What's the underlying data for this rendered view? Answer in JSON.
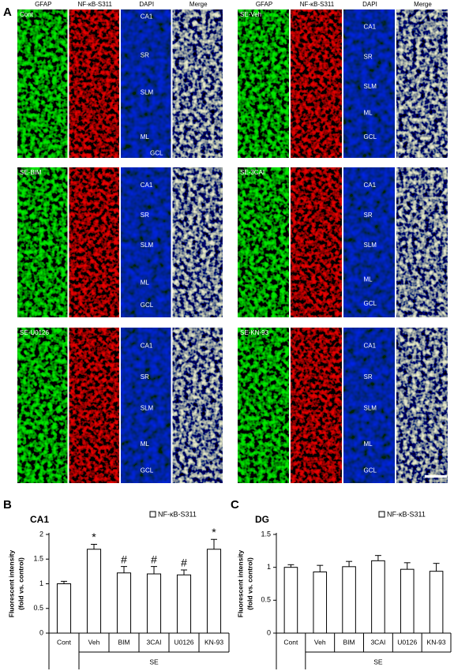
{
  "panel_a": {
    "label": "A",
    "column_headers": [
      "GFAP",
      "NF-κB-S311",
      "DAPI",
      "Merge"
    ],
    "groups": [
      {
        "name": "Cont",
        "regions": [
          "CA1",
          "SR",
          "SLM",
          "ML",
          "GCL"
        ]
      },
      {
        "name": "SE-Veh",
        "regions": [
          "CA1",
          "SR",
          "SLM",
          "ML",
          "GCL"
        ]
      },
      {
        "name": "SE-BIM",
        "regions": [
          "CA1",
          "SR",
          "SLM",
          "ML",
          "GCL"
        ]
      },
      {
        "name": "SE-3CAI",
        "regions": [
          "CA1",
          "SR",
          "SLM",
          "ML",
          "GCL"
        ]
      },
      {
        "name": "SE-U0126",
        "regions": [
          "CA1",
          "SR",
          "SLM",
          "ML",
          "GCL"
        ]
      },
      {
        "name": "SE-KN-93",
        "regions": [
          "CA1",
          "SR",
          "SLM",
          "ML",
          "GCL"
        ]
      }
    ]
  },
  "chart_data": [
    {
      "type": "bar",
      "panel_label": "B",
      "title": "CA1",
      "y_label": [
        "Fluorescent intensity",
        "(fold vs. control)"
      ],
      "categories": [
        "Cont",
        "Veh",
        "BIM",
        "3CAI",
        "U0126",
        "KN-93"
      ],
      "group_label": "SE",
      "series": [
        {
          "name": "NF-κB-S311",
          "color": "#ffffff",
          "values": [
            1.0,
            1.7,
            1.22,
            1.2,
            1.18,
            1.7
          ],
          "errors": [
            0.05,
            0.1,
            0.13,
            0.15,
            0.1,
            0.2
          ]
        }
      ],
      "annotations": [
        null,
        "*",
        "#",
        "#",
        "#",
        "*"
      ],
      "ylim": [
        0,
        2
      ],
      "yticks": [
        0,
        0.5,
        1,
        1.5,
        2
      ]
    },
    {
      "type": "bar",
      "panel_label": "C",
      "title": "DG",
      "y_label": [
        "Fluorescent intensity",
        "(fold vs. control)"
      ],
      "categories": [
        "Cont",
        "Veh",
        "BIM",
        "3CAI",
        "U0126",
        "KN-93"
      ],
      "group_label": "SE",
      "series": [
        {
          "name": "NF-κB-S311",
          "color": "#ffffff",
          "values": [
            1.0,
            0.93,
            1.01,
            1.1,
            0.97,
            0.94
          ],
          "errors": [
            0.04,
            0.1,
            0.08,
            0.08,
            0.1,
            0.12
          ]
        }
      ],
      "annotations": [
        null,
        null,
        null,
        null,
        null,
        null
      ],
      "ylim": [
        0,
        1.5
      ],
      "yticks": [
        0,
        0.5,
        1,
        1.5
      ]
    }
  ]
}
